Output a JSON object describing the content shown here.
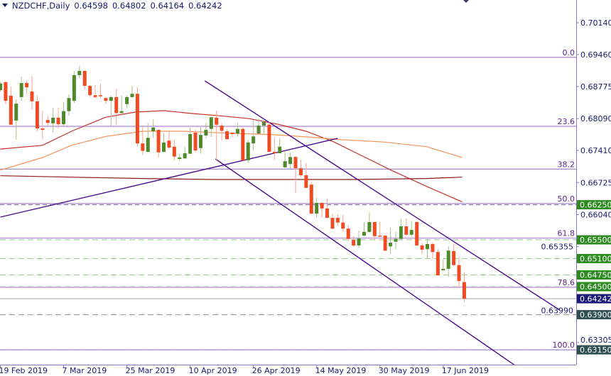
{
  "header": {
    "symbol": "NZDCHF,Daily",
    "open": "0.64598",
    "high": "0.64802",
    "low": "0.64164",
    "close": "0.64242"
  },
  "colors": {
    "bull": "#4e8a2b",
    "bear": "#f04a22",
    "bull_wick": "#a3c48a",
    "bear_wick": "#f5a592",
    "ma_fast": "#c8302a",
    "ma_slow": "#f7925a",
    "ma_long": "#8b1a1a",
    "trendline": "#4b0c8c",
    "fib": "#9c7cc8",
    "level_green": "#2e8b22",
    "level_dark": "#2f4f4f",
    "current": "#1a1a7a"
  },
  "chart_data": {
    "type": "candlestick",
    "title": "NZDCHF,Daily",
    "ylim": [
      0.6297,
      0.708
    ],
    "y_ticks": [
      "0.70140",
      "0.69460",
      "0.68775",
      "0.68090",
      "0.67410",
      "0.66725",
      "0.66040",
      "0.65355",
      "0.63990",
      "0.63305"
    ],
    "x_ticks": [
      {
        "bar": 0,
        "label": "19 Feb 2019"
      },
      {
        "bar": 12,
        "label": "7 Mar 2019"
      },
      {
        "bar": 24,
        "label": "25 Mar 2019"
      },
      {
        "bar": 36,
        "label": "10 Apr 2019"
      },
      {
        "bar": 48,
        "label": "26 Apr 2019"
      },
      {
        "bar": 60,
        "label": "14 May 2019"
      },
      {
        "bar": 72,
        "label": "30 May 2019"
      },
      {
        "bar": 84,
        "label": "17 Jun 2019"
      }
    ],
    "candles_ohlc": [
      [
        0.687,
        0.6887,
        0.6867,
        0.6884
      ],
      [
        0.6887,
        0.689,
        0.684,
        0.6847
      ],
      [
        0.6858,
        0.6878,
        0.6796,
        0.6796
      ],
      [
        0.6805,
        0.685,
        0.6764,
        0.6841
      ],
      [
        0.6855,
        0.6899,
        0.6847,
        0.6885
      ],
      [
        0.6885,
        0.689,
        0.6861,
        0.6876
      ],
      [
        0.6867,
        0.69,
        0.6828,
        0.6846
      ],
      [
        0.6846,
        0.6859,
        0.6782,
        0.6788
      ],
      [
        0.6788,
        0.6826,
        0.6764,
        0.6785
      ],
      [
        0.6806,
        0.6815,
        0.6794,
        0.68
      ],
      [
        0.6799,
        0.6832,
        0.6779,
        0.6811
      ],
      [
        0.6811,
        0.6832,
        0.6788,
        0.6797
      ],
      [
        0.6797,
        0.6843,
        0.6794,
        0.6825
      ],
      [
        0.6825,
        0.6861,
        0.6815,
        0.6853
      ],
      [
        0.6847,
        0.6911,
        0.6843,
        0.6902
      ],
      [
        0.6902,
        0.6922,
        0.6896,
        0.6911
      ],
      [
        0.6911,
        0.6912,
        0.6872,
        0.6879
      ],
      [
        0.6879,
        0.6881,
        0.6855,
        0.6859
      ],
      [
        0.6859,
        0.6881,
        0.6853,
        0.6855
      ],
      [
        0.6859,
        0.6884,
        0.6853,
        0.6858
      ],
      [
        0.6853,
        0.6855,
        0.684,
        0.6847
      ],
      [
        0.6847,
        0.6858,
        0.6794,
        0.6855
      ],
      [
        0.6855,
        0.6873,
        0.6796,
        0.6821
      ],
      [
        0.6821,
        0.6858,
        0.6815,
        0.6825
      ],
      [
        0.684,
        0.6858,
        0.6831,
        0.6855
      ],
      [
        0.6855,
        0.6879,
        0.6855,
        0.6862
      ],
      [
        0.6862,
        0.6876,
        0.6749,
        0.6756
      ],
      [
        0.6756,
        0.6794,
        0.6731,
        0.674
      ],
      [
        0.6738,
        0.68,
        0.6737,
        0.6768
      ],
      [
        0.6782,
        0.6808,
        0.6768,
        0.679
      ],
      [
        0.6785,
        0.6785,
        0.6726,
        0.6737
      ],
      [
        0.6738,
        0.6778,
        0.6737,
        0.6758
      ],
      [
        0.6762,
        0.6782,
        0.6744,
        0.6747
      ],
      [
        0.6749,
        0.6764,
        0.672,
        0.6728
      ],
      [
        0.6723,
        0.6734,
        0.6718,
        0.6726
      ],
      [
        0.6724,
        0.6749,
        0.6724,
        0.6735
      ],
      [
        0.6734,
        0.679,
        0.6734,
        0.6776
      ],
      [
        0.6779,
        0.6785,
        0.6737,
        0.6741
      ],
      [
        0.6746,
        0.6791,
        0.6734,
        0.6774
      ],
      [
        0.6773,
        0.68,
        0.6767,
        0.6785
      ],
      [
        0.6787,
        0.6812,
        0.677,
        0.6812
      ],
      [
        0.6811,
        0.6826,
        0.6718,
        0.6796
      ],
      [
        0.6794,
        0.68,
        0.6762,
        0.6783
      ],
      [
        0.6782,
        0.6787,
        0.6765,
        0.6765
      ],
      [
        0.6779,
        0.6779,
        0.677,
        0.6776
      ],
      [
        0.6777,
        0.6799,
        0.677,
        0.6787
      ],
      [
        0.6787,
        0.679,
        0.672,
        0.672
      ],
      [
        0.672,
        0.6764,
        0.6714,
        0.6758
      ],
      [
        0.6756,
        0.6806,
        0.674,
        0.6771
      ],
      [
        0.6777,
        0.6809,
        0.6777,
        0.6794
      ],
      [
        0.6794,
        0.6806,
        0.6777,
        0.6802
      ],
      [
        0.6796,
        0.6802,
        0.6738,
        0.6738
      ],
      [
        0.6738,
        0.6768,
        0.6721,
        0.6735
      ],
      [
        0.6735,
        0.6768,
        0.6735,
        0.6749
      ],
      [
        0.6705,
        0.674,
        0.6703,
        0.6718
      ],
      [
        0.6712,
        0.6737,
        0.6702,
        0.6727
      ],
      [
        0.6727,
        0.6729,
        0.665,
        0.6703
      ],
      [
        0.6703,
        0.6721,
        0.6684,
        0.6688
      ],
      [
        0.6688,
        0.6714,
        0.6661,
        0.6661
      ],
      [
        0.6668,
        0.6673,
        0.6606,
        0.6606
      ],
      [
        0.6606,
        0.664,
        0.6597,
        0.6629
      ],
      [
        0.6629,
        0.663,
        0.6597,
        0.6617
      ],
      [
        0.6617,
        0.6638,
        0.6597,
        0.6597
      ],
      [
        0.6597,
        0.6606,
        0.6573,
        0.6574
      ],
      [
        0.6597,
        0.6605,
        0.658,
        0.6587
      ],
      [
        0.6587,
        0.6603,
        0.6567,
        0.6574
      ],
      [
        0.6574,
        0.6582,
        0.6547,
        0.6552
      ],
      [
        0.655,
        0.6558,
        0.6535,
        0.6538
      ],
      [
        0.6538,
        0.657,
        0.6533,
        0.6553
      ],
      [
        0.6559,
        0.6588,
        0.6558,
        0.6567
      ],
      [
        0.6567,
        0.6609,
        0.6565,
        0.6588
      ],
      [
        0.6588,
        0.6588,
        0.655,
        0.6558
      ],
      [
        0.6559,
        0.6588,
        0.6558,
        0.6558
      ],
      [
        0.6559,
        0.6559,
        0.6526,
        0.6527
      ],
      [
        0.6536,
        0.6576,
        0.652,
        0.6544
      ],
      [
        0.6546,
        0.6567,
        0.653,
        0.6552
      ],
      [
        0.6552,
        0.6594,
        0.655,
        0.6579
      ],
      [
        0.6579,
        0.6596,
        0.6558,
        0.6561
      ],
      [
        0.6561,
        0.659,
        0.6558,
        0.6571
      ],
      [
        0.6588,
        0.659,
        0.6536,
        0.6538
      ],
      [
        0.6538,
        0.6543,
        0.652,
        0.6529
      ],
      [
        0.653,
        0.6552,
        0.6509,
        0.6541
      ],
      [
        0.6541,
        0.6544,
        0.6509,
        0.6524
      ],
      [
        0.6524,
        0.653,
        0.6474,
        0.6474
      ],
      [
        0.6485,
        0.6508,
        0.6483,
        0.6488
      ],
      [
        0.6488,
        0.6536,
        0.6471,
        0.6527
      ],
      [
        0.6526,
        0.6542,
        0.6494,
        0.6496
      ],
      [
        0.6496,
        0.6514,
        0.6447,
        0.6462
      ],
      [
        0.64598,
        0.64802,
        0.64164,
        0.64242
      ]
    ],
    "moving_averages": [
      {
        "role": "ma_fast",
        "points": [
          [
            0,
            0.6744
          ],
          [
            8,
            0.6752
          ],
          [
            13.5,
            0.6782
          ],
          [
            20,
            0.6812
          ],
          [
            25.6,
            0.6823
          ],
          [
            31,
            0.6826
          ],
          [
            36.4,
            0.682
          ],
          [
            41.8,
            0.6815
          ],
          [
            47.2,
            0.6809
          ],
          [
            52.6,
            0.6797
          ],
          [
            58,
            0.6782
          ],
          [
            63.3,
            0.6759
          ],
          [
            68.7,
            0.6729
          ],
          [
            74.1,
            0.6699
          ],
          [
            80.9,
            0.6664
          ],
          [
            87.6,
            0.6631
          ]
        ]
      },
      {
        "role": "ma_slow",
        "points": [
          [
            0,
            0.6699
          ],
          [
            8,
            0.6726
          ],
          [
            13.5,
            0.6752
          ],
          [
            20,
            0.6771
          ],
          [
            27,
            0.6782
          ],
          [
            35,
            0.6782
          ],
          [
            43,
            0.6778
          ],
          [
            51.2,
            0.6775
          ],
          [
            58,
            0.677
          ],
          [
            64.7,
            0.6764
          ],
          [
            72.8,
            0.6759
          ],
          [
            80.9,
            0.6749
          ],
          [
            87.6,
            0.6726
          ]
        ]
      },
      {
        "role": "ma_long",
        "points": [
          [
            0,
            0.6687
          ],
          [
            13.5,
            0.6684
          ],
          [
            27,
            0.6681
          ],
          [
            40.4,
            0.6679
          ],
          [
            53.9,
            0.6679
          ],
          [
            67.4,
            0.6679
          ],
          [
            80.9,
            0.6681
          ],
          [
            87.6,
            0.6684
          ]
        ]
      }
    ],
    "trendlines": [
      {
        "from": [
          0,
          0.65986
        ],
        "to": [
          64.0,
          0.67669
        ]
      },
      {
        "from": [
          38.8,
          0.68897
        ],
        "to": [
          106.1,
          0.64
        ]
      },
      {
        "from": [
          40.8,
          0.67229
        ],
        "to": [
          98.4,
          0.62757
        ]
      }
    ],
    "fibonacci": {
      "high": 0.694,
      "low": 0.6315,
      "levels": [
        {
          "ratio": 0.0,
          "label": "0.0"
        },
        {
          "ratio": 0.236,
          "label": "23.6"
        },
        {
          "ratio": 0.382,
          "label": "38.2"
        },
        {
          "ratio": 0.5,
          "label": "50.0"
        },
        {
          "ratio": 0.618,
          "label": "61.8"
        },
        {
          "ratio": 0.786,
          "label": "78.6"
        },
        {
          "ratio": 1.0,
          "label": "100.0"
        }
      ]
    },
    "price_levels": [
      {
        "price": 0.6625,
        "label": "0.66250",
        "kind": "dark_dashed",
        "badge": "level_green"
      },
      {
        "price": 0.655,
        "label": "0.65500",
        "kind": "green_dashed",
        "badge": "level_green"
      },
      {
        "price": 0.651,
        "label": "0.65100",
        "kind": "green_dashed",
        "badge": "level_green"
      },
      {
        "price": 0.6475,
        "label": "0.64750",
        "kind": "green_dashed",
        "badge": "level_green"
      },
      {
        "price": 0.645,
        "label": "0.64500",
        "kind": "green_dashed",
        "badge": "level_green"
      },
      {
        "price": 0.64242,
        "label": "0.64242",
        "kind": "current",
        "badge": "current"
      },
      {
        "price": 0.639,
        "label": "0.63900",
        "kind": "grey_dashed",
        "badge": "level_dark"
      },
      {
        "price": 0.6315,
        "label": "0.63150",
        "kind": "grey_dashed",
        "badge": "level_dark"
      }
    ]
  }
}
